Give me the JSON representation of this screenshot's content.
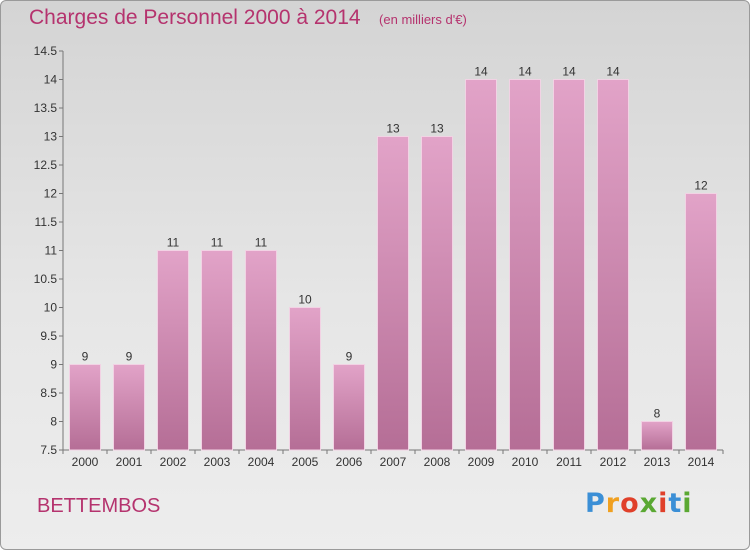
{
  "header": {
    "title": "Charges de Personnel 2000 à 2014",
    "unit": "(en milliers d'€)"
  },
  "footer": {
    "entity": "BETTEMBOS",
    "logo_text": "Proxiti"
  },
  "colors": {
    "accent": "#b5336e",
    "bar_light": "#e2a3c8",
    "bar_dark": "#b56e96"
  },
  "chart_data": {
    "type": "bar",
    "title": "Charges de Personnel 2000 à 2014",
    "subtitle": "(en milliers d'€)",
    "xlabel": "",
    "ylabel": "",
    "categories": [
      "2000",
      "2001",
      "2002",
      "2003",
      "2004",
      "2005",
      "2006",
      "2007",
      "2008",
      "2009",
      "2010",
      "2011",
      "2012",
      "2013",
      "2014"
    ],
    "values": [
      9,
      9,
      11,
      11,
      11,
      10,
      9,
      13,
      13,
      14,
      14,
      14,
      14,
      8,
      12
    ],
    "ylim": [
      7.5,
      14.5
    ],
    "yticks": [
      "7.5",
      "8",
      "8.5",
      "9",
      "9.5",
      "10",
      "10.5",
      "11",
      "11.5",
      "12",
      "12.5",
      "13",
      "13.5",
      "14",
      "14.5"
    ],
    "grid": false,
    "legend": "none"
  }
}
